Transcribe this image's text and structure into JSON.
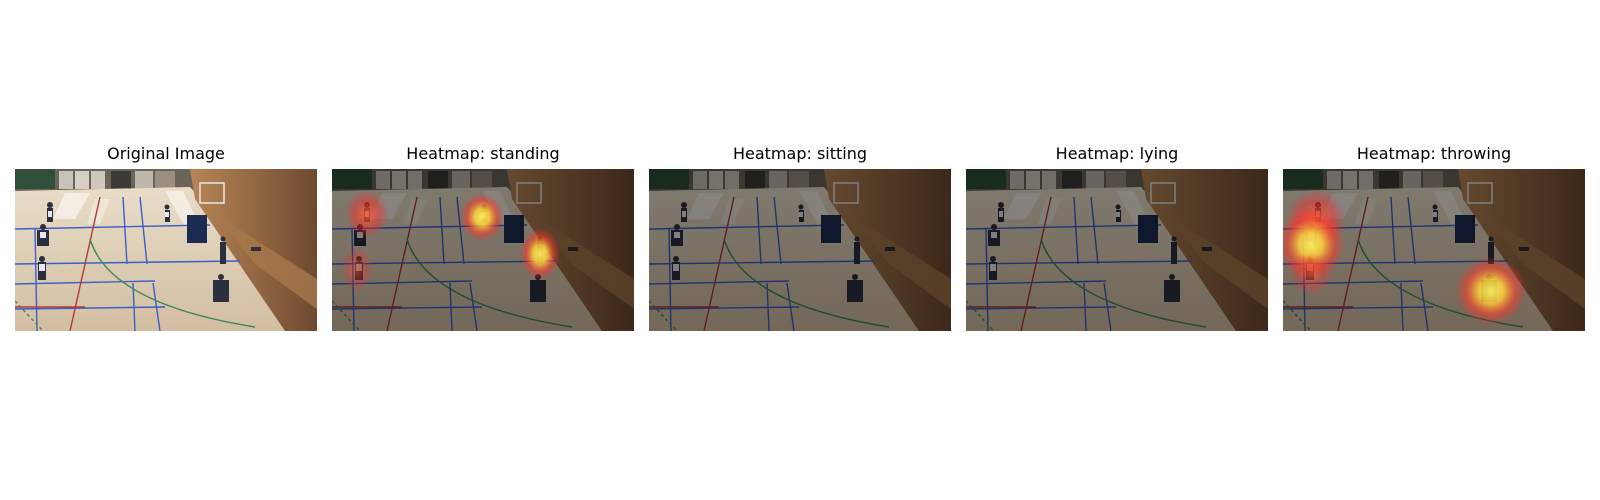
{
  "figure": {
    "panels": [
      {
        "title": "Original Image",
        "kind": "original"
      },
      {
        "title": "Heatmap: standing",
        "kind": "heatmap"
      },
      {
        "title": "Heatmap: sitting",
        "kind": "heatmap"
      },
      {
        "title": "Heatmap: lying",
        "kind": "heatmap"
      },
      {
        "title": "Heatmap: throwing",
        "kind": "heatmap"
      }
    ],
    "colors": {
      "floor": "#d8c8b0",
      "wall": "#8a5a36",
      "court_blue": "#3a5fc8",
      "court_red": "#b03a3a",
      "court_green": "#3a8a5a",
      "heat_core": "#fff36a",
      "heat_edge": "#ff2a2a",
      "dim_overlay": "#000000"
    }
  }
}
